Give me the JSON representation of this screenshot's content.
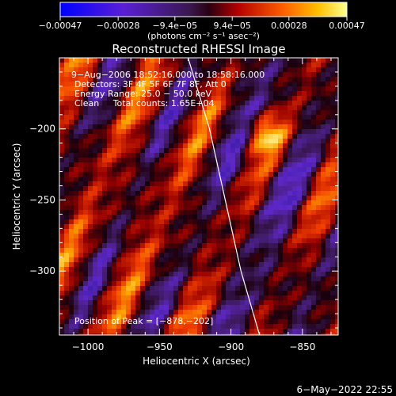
{
  "chart_data": {
    "type": "heatmap",
    "title": "Reconstructed RHESSI Image",
    "xlabel": "Heliocentric X (arcsec)",
    "ylabel": "Heliocentric Y (arcsec)",
    "xlim": [
      -1020,
      -825
    ],
    "ylim": [
      -345,
      -150
    ],
    "x_ticks": [
      -1000,
      -950,
      -900,
      -850
    ],
    "y_ticks": [
      -200,
      -250,
      -300
    ],
    "x_tick_labels": [
      "−1000",
      "−950",
      "−900",
      "−850"
    ],
    "y_tick_labels": [
      "−200",
      "−250",
      "−300"
    ],
    "colorbar": {
      "range": [
        -0.00047,
        0.00047
      ],
      "ticks": [
        -0.00047,
        -0.00028,
        -9.4e-05,
        9.4e-05,
        0.00028,
        0.00047
      ],
      "tick_labels": [
        "−0.00047",
        "−0.00028",
        "−9.4e−05",
        "9.4e−05",
        "0.00028",
        "0.00047"
      ],
      "unit_label": "(photons cm⁻² s⁻¹ asec⁻²)"
    },
    "annotations": [
      "9−Aug−2006 18:52:16.000 to 18:58:16.000",
      "Detectors: 3F 4F 5F 6F 7F 8F, Att 0",
      "Energy Range: 25.0 − 50.0 keV",
      "Clean     Total counts: 1.65E+04"
    ],
    "peak_label": "Position of Peak = [−878,−202]",
    "peak": [
      -878,
      -202
    ],
    "limb_curve": [
      [
        -930,
        -150
      ],
      [
        -915,
        -200
      ],
      [
        -904,
        -250
      ],
      [
        -893,
        -300
      ],
      [
        -880,
        -345
      ]
    ],
    "grid": false
  },
  "footer": {
    "timestamp": "6−May−2022 22:55"
  },
  "colors": {
    "background": "#000000",
    "foreground": "#ffffff"
  }
}
